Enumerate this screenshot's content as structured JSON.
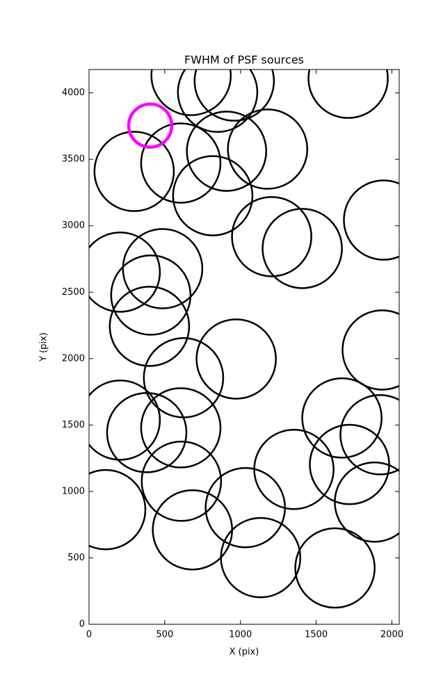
{
  "chart_data": {
    "type": "scatter",
    "title": "FWHM of PSF sources",
    "x_label": "X (pix)",
    "y_label": "Y (pix)",
    "xlim": [
      0,
      2048
    ],
    "ylim": [
      0,
      4176
    ],
    "xticks": [
      0,
      500,
      1000,
      1500,
      2000
    ],
    "yticks": [
      0,
      500,
      1000,
      1500,
      2000,
      2500,
      3000,
      3500,
      4000
    ],
    "grid": false,
    "series": [
      {
        "color": "#000000",
        "radius": 262,
        "stroke_width": 2.5,
        "x": [
          674,
          849,
          959,
          1711,
          298,
          606,
          908,
          1179,
          817,
          1206,
          1408,
          1945,
          206,
          486,
          408,
          399,
          972,
          624,
          1936,
          206,
          381,
          606,
          1670,
          1922,
          610,
          1353,
          1720,
          110,
          1032,
          1885,
          683,
          1133,
          1624
        ],
        "values": [
          4131,
          4005,
          4089,
          4110,
          3409,
          3472,
          3561,
          3577,
          3226,
          2918,
          2829,
          3043,
          2651,
          2677,
          2478,
          2243,
          1997,
          1856,
          2065,
          1537,
          1443,
          1479,
          1553,
          1427,
          1077,
          1166,
          1203,
          863,
          878,
          920,
          711,
          502,
          424
        ]
      },
      {
        "color": "#ff00ff",
        "radius": 142,
        "stroke_width": 4.5,
        "x": [
          404
        ],
        "values": [
          3754
        ]
      }
    ]
  }
}
